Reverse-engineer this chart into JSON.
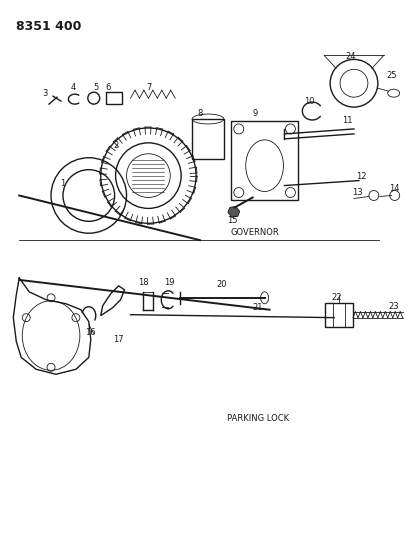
{
  "title": "8351 400",
  "governor_label": "GOVERNOR",
  "parking_label": "PARKING LOCK",
  "bg_color": "#ffffff",
  "line_color": "#1a1a1a",
  "fig_width": 4.1,
  "fig_height": 5.33,
  "dpi": 100,
  "title_fontsize": 9,
  "label_fontsize": 6,
  "num_fontsize": 6
}
